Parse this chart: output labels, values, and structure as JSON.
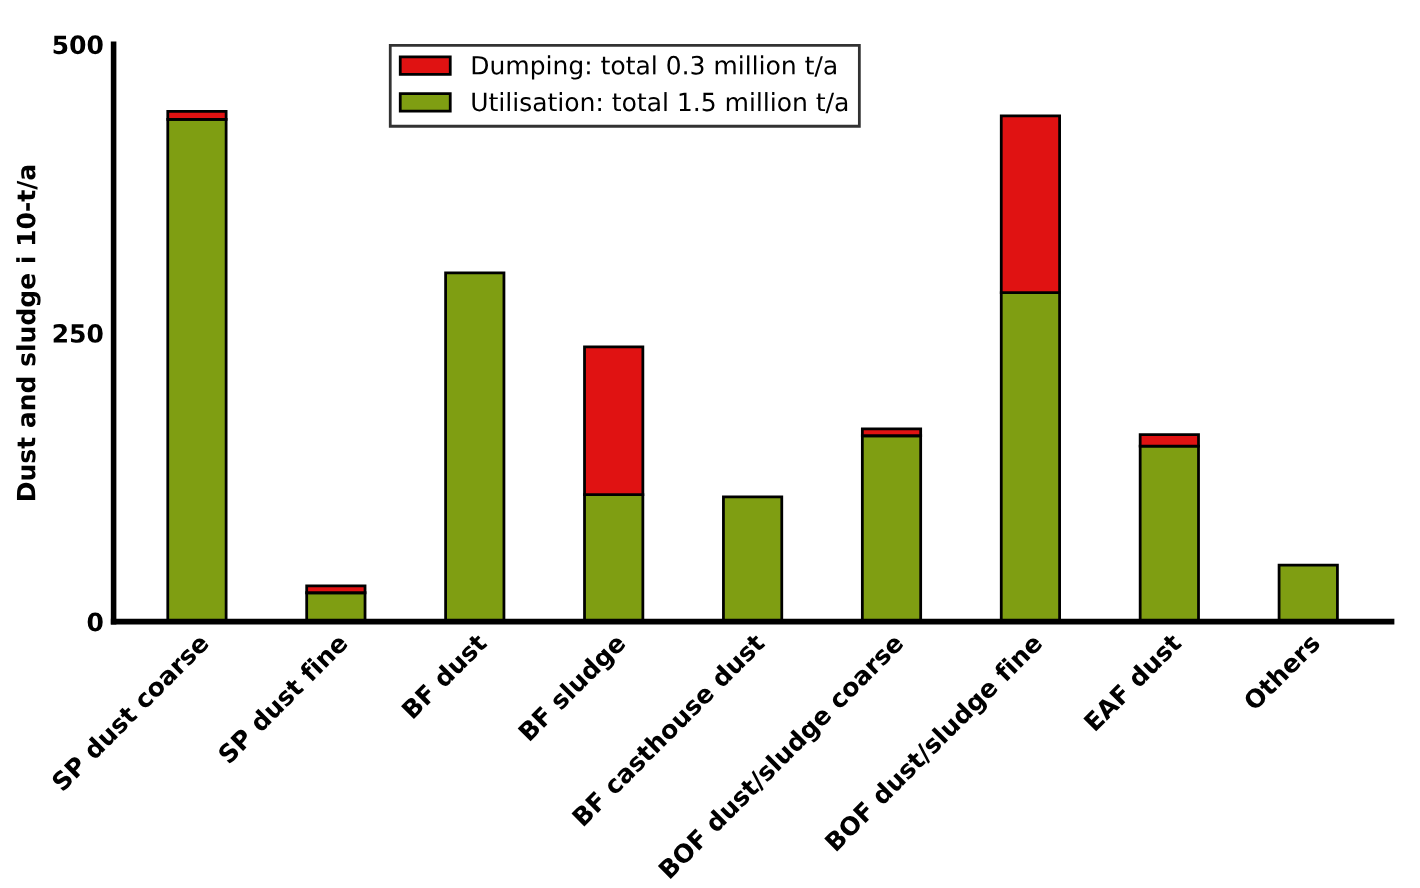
{
  "chart_data": {
    "type": "bar",
    "stacked": true,
    "ylabel": "Dust and sludge i 10-t/a",
    "categories": [
      "SP dust coarse",
      "SP dust fine",
      "BF dust",
      "BF sludge",
      "BF casthouse dust",
      "BOF dust/sludge coarse",
      "BOF dust/sludge fine",
      "EAF dust",
      "Others"
    ],
    "series": [
      {
        "name": "Utilisation: total 1.5 million t/a",
        "color": "#7f9e12",
        "values": [
          435,
          25,
          302,
          110,
          108,
          161,
          285,
          152,
          49
        ]
      },
      {
        "name": "Dumping: total 0.3 million t/a",
        "color": "#e01212",
        "values": [
          7,
          6,
          null,
          128,
          null,
          6,
          153,
          10,
          null
        ]
      }
    ],
    "ylim": [
      0,
      500
    ],
    "yticks": [
      0,
      250,
      500
    ],
    "grid": false,
    "legend": "top"
  }
}
